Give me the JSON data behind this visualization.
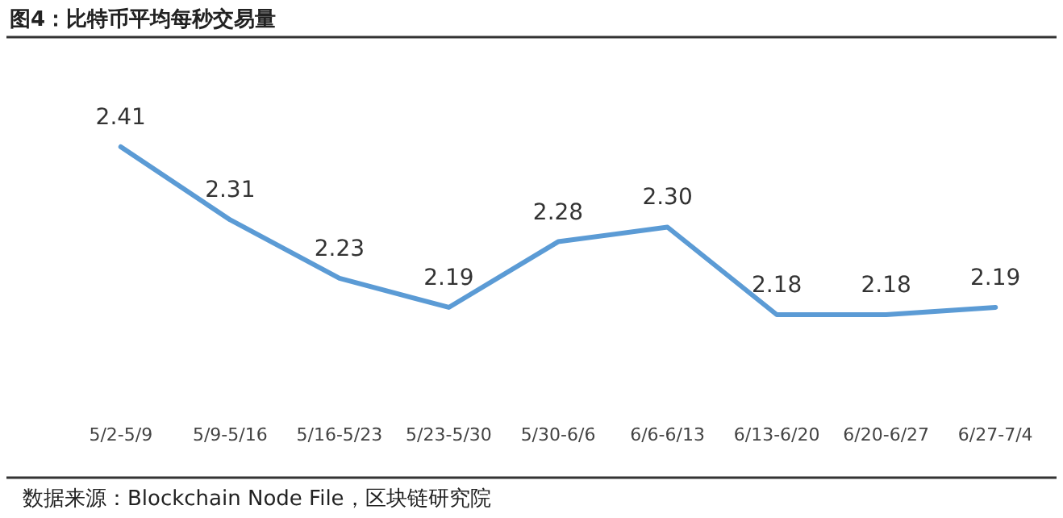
{
  "chart_data": {
    "type": "line",
    "title": "图4：比特币平均每秒交易量",
    "categories": [
      "5/2-5/9",
      "5/9-5/16",
      "5/16-5/23",
      "5/23-5/30",
      "5/30-6/6",
      "6/6-6/13",
      "6/13-6/20",
      "6/20-6/27",
      "6/27-7/4"
    ],
    "series": [
      {
        "color": "#5b9bd5",
        "values": [
          2.41,
          2.31,
          2.23,
          2.19,
          2.28,
          2.3,
          2.18,
          2.18,
          2.19
        ],
        "value_labels": [
          "2.41",
          "2.31",
          "2.23",
          "2.19",
          "2.28",
          "2.30",
          "2.18",
          "2.18",
          "2.19"
        ]
      }
    ],
    "tick_labels": "x",
    "marker": "none",
    "line_style": "solid",
    "annotations": [
      "数据来源：Blockchain Node File，区块链研究院"
    ]
  }
}
